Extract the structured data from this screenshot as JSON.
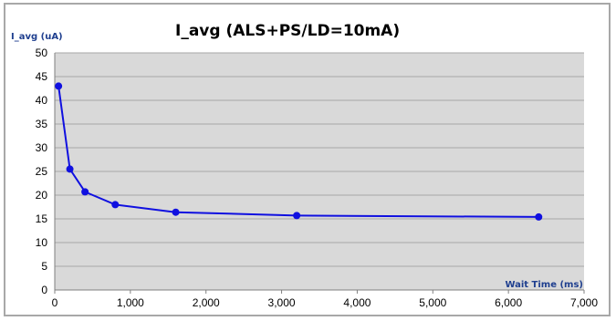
{
  "chart_data": {
    "type": "line",
    "title": "I_avg (ALS+PS/LD=10mA)",
    "xlabel": "Wait Time (ms)",
    "ylabel": "I_avg (uA)",
    "xlim": [
      0,
      7000
    ],
    "ylim": [
      0,
      50
    ],
    "x_ticks": [
      "0",
      "1,000",
      "2,000",
      "3,000",
      "4,000",
      "5,000",
      "6,000",
      "7,000"
    ],
    "y_ticks": [
      "0",
      "5",
      "10",
      "15",
      "20",
      "25",
      "30",
      "35",
      "40",
      "45",
      "50"
    ],
    "grid": "horizontal",
    "legend": "none",
    "series": [
      {
        "color": "#1010e0",
        "points": [
          {
            "x": 50,
            "y": 43
          },
          {
            "x": 200,
            "y": 25.5
          },
          {
            "x": 400,
            "y": 20.7
          },
          {
            "x": 800,
            "y": 18
          },
          {
            "x": 1600,
            "y": 16.4
          },
          {
            "x": 3200,
            "y": 15.7
          },
          {
            "x": 6400,
            "y": 15.4
          }
        ]
      }
    ],
    "colors": {
      "plot_bg": "#d9d9d9",
      "grid": "#a6a6a6",
      "label": "#1f3f8f"
    }
  }
}
